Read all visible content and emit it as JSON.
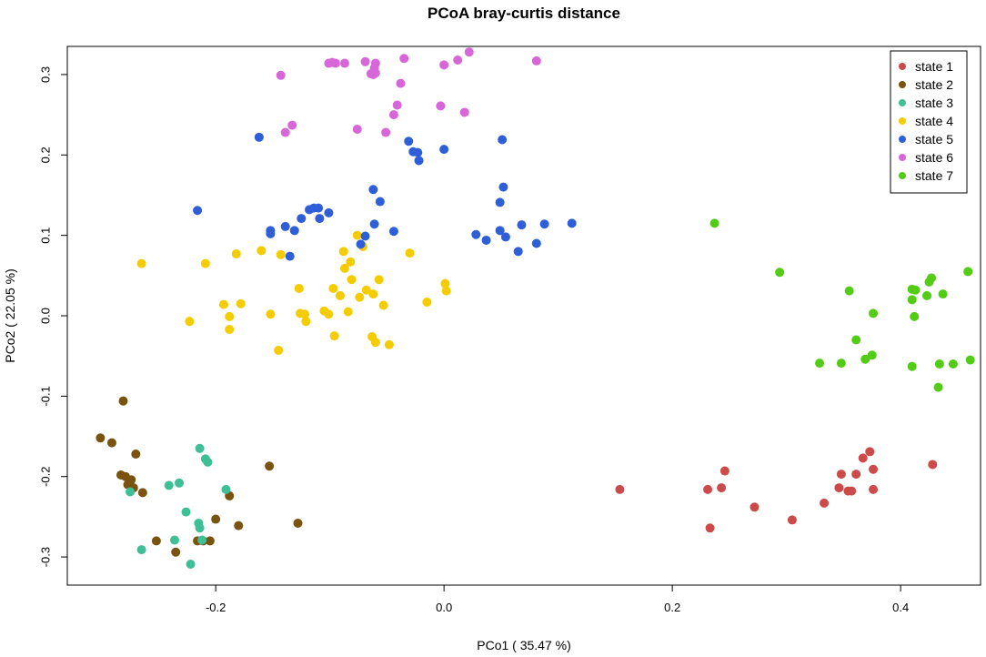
{
  "chart_data": {
    "type": "scatter",
    "title": "PCoA bray-curtis distance",
    "xlabel": "PCo1 ( 35.47  %)",
    "ylabel": "PCo2 ( 22.05  %)",
    "xlim": [
      -0.33,
      0.47
    ],
    "ylim": [
      -0.335,
      0.335
    ],
    "xticks": [
      -0.2,
      0.0,
      0.2,
      0.4
    ],
    "xtick_labels": [
      "-0.2",
      "0.0",
      "0.2",
      "0.4"
    ],
    "yticks": [
      -0.3,
      -0.2,
      -0.1,
      0.0,
      0.1,
      0.2,
      0.3
    ],
    "ytick_labels": [
      "-0.3",
      "-0.2",
      "-0.1",
      "0.0",
      "0.1",
      "0.2",
      "0.3"
    ],
    "grid": false,
    "legend_position": "top-right",
    "series": [
      {
        "name": "state 1",
        "color": "#cc4a4a",
        "points": [
          [
            0.154,
            -0.216
          ],
          [
            0.231,
            -0.216
          ],
          [
            0.233,
            -0.264
          ],
          [
            0.243,
            -0.214
          ],
          [
            0.246,
            -0.193
          ],
          [
            0.272,
            -0.238
          ],
          [
            0.305,
            -0.254
          ],
          [
            0.333,
            -0.233
          ],
          [
            0.346,
            -0.214
          ],
          [
            0.348,
            -0.197
          ],
          [
            0.354,
            -0.218
          ],
          [
            0.357,
            -0.218
          ],
          [
            0.361,
            -0.197
          ],
          [
            0.367,
            -0.177
          ],
          [
            0.373,
            -0.169
          ],
          [
            0.376,
            -0.216
          ],
          [
            0.376,
            -0.191
          ],
          [
            0.428,
            -0.185
          ]
        ]
      },
      {
        "name": "state 2",
        "color": "#7a5310",
        "points": [
          [
            -0.301,
            -0.152
          ],
          [
            -0.291,
            -0.158
          ],
          [
            -0.283,
            -0.198
          ],
          [
            -0.281,
            -0.106
          ],
          [
            -0.279,
            -0.2
          ],
          [
            -0.277,
            -0.21
          ],
          [
            -0.274,
            -0.204
          ],
          [
            -0.272,
            -0.214
          ],
          [
            -0.27,
            -0.172
          ],
          [
            -0.264,
            -0.22
          ],
          [
            -0.252,
            -0.28
          ],
          [
            -0.235,
            -0.294
          ],
          [
            -0.216,
            -0.28
          ],
          [
            -0.211,
            -0.28
          ],
          [
            -0.205,
            -0.28
          ],
          [
            -0.2,
            -0.253
          ],
          [
            -0.188,
            -0.224
          ],
          [
            -0.18,
            -0.261
          ],
          [
            -0.153,
            -0.187
          ],
          [
            -0.128,
            -0.258
          ]
        ]
      },
      {
        "name": "state 3",
        "color": "#3fbf96",
        "points": [
          [
            -0.275,
            -0.219
          ],
          [
            -0.265,
            -0.291
          ],
          [
            -0.241,
            -0.211
          ],
          [
            -0.236,
            -0.279
          ],
          [
            -0.232,
            -0.208
          ],
          [
            -0.226,
            -0.244
          ],
          [
            -0.222,
            -0.309
          ],
          [
            -0.215,
            -0.258
          ],
          [
            -0.214,
            -0.264
          ],
          [
            -0.214,
            -0.165
          ],
          [
            -0.212,
            -0.279
          ],
          [
            -0.209,
            -0.178
          ],
          [
            -0.207,
            -0.182
          ],
          [
            -0.191,
            -0.216
          ]
        ]
      },
      {
        "name": "state 4",
        "color": "#f5cc00",
        "points": [
          [
            -0.265,
            0.065
          ],
          [
            -0.223,
            -0.007
          ],
          [
            -0.209,
            0.065
          ],
          [
            -0.193,
            0.014
          ],
          [
            -0.188,
            -0.001
          ],
          [
            -0.188,
            -0.017
          ],
          [
            -0.182,
            0.077
          ],
          [
            -0.178,
            0.015
          ],
          [
            -0.16,
            0.081
          ],
          [
            -0.152,
            0.002
          ],
          [
            -0.145,
            -0.043
          ],
          [
            -0.143,
            0.076
          ],
          [
            -0.127,
            0.034
          ],
          [
            -0.126,
            0.003
          ],
          [
            -0.122,
            0.002
          ],
          [
            -0.121,
            -0.007
          ],
          [
            -0.105,
            0.006
          ],
          [
            -0.101,
            0.002
          ],
          [
            -0.097,
            0.034
          ],
          [
            -0.096,
            -0.025
          ],
          [
            -0.091,
            0.025
          ],
          [
            -0.088,
            0.08
          ],
          [
            -0.087,
            0.059
          ],
          [
            -0.084,
            0.005
          ],
          [
            -0.082,
            0.067
          ],
          [
            -0.081,
            0.045
          ],
          [
            -0.076,
            0.1
          ],
          [
            -0.074,
            0.023
          ],
          [
            -0.071,
            0.086
          ],
          [
            -0.068,
            0.032
          ],
          [
            -0.063,
            -0.026
          ],
          [
            -0.062,
            0.027
          ],
          [
            -0.06,
            -0.033
          ],
          [
            -0.057,
            0.045
          ],
          [
            -0.053,
            0.013
          ],
          [
            -0.048,
            -0.036
          ],
          [
            -0.03,
            0.078
          ],
          [
            -0.015,
            0.017
          ],
          [
            0.001,
            0.04
          ],
          [
            0.002,
            0.031
          ]
        ]
      },
      {
        "name": "state 5",
        "color": "#2e5fd9",
        "points": [
          [
            -0.216,
            0.131
          ],
          [
            -0.162,
            0.222
          ],
          [
            -0.152,
            0.106
          ],
          [
            -0.152,
            0.102
          ],
          [
            -0.139,
            0.111
          ],
          [
            -0.135,
            0.074
          ],
          [
            -0.131,
            0.106
          ],
          [
            -0.125,
            0.121
          ],
          [
            -0.118,
            0.132
          ],
          [
            -0.114,
            0.134
          ],
          [
            -0.11,
            0.134
          ],
          [
            -0.109,
            0.121
          ],
          [
            -0.101,
            0.128
          ],
          [
            -0.073,
            0.089
          ],
          [
            -0.069,
            0.099
          ],
          [
            -0.062,
            0.157
          ],
          [
            -0.061,
            0.114
          ],
          [
            -0.056,
            0.142
          ],
          [
            -0.044,
            0.105
          ],
          [
            -0.031,
            0.217
          ],
          [
            -0.027,
            0.204
          ],
          [
            -0.023,
            0.203
          ],
          [
            -0.022,
            0.193
          ],
          [
            0.0,
            0.207
          ],
          [
            0.028,
            0.101
          ],
          [
            0.037,
            0.094
          ],
          [
            0.049,
            0.106
          ],
          [
            0.049,
            0.141
          ],
          [
            0.051,
            0.219
          ],
          [
            0.052,
            0.16
          ],
          [
            0.054,
            0.098
          ],
          [
            0.065,
            0.08
          ],
          [
            0.068,
            0.113
          ],
          [
            0.081,
            0.09
          ],
          [
            0.088,
            0.114
          ],
          [
            0.112,
            0.115
          ]
        ]
      },
      {
        "name": "state 6",
        "color": "#d966d9",
        "points": [
          [
            -0.143,
            0.299
          ],
          [
            -0.139,
            0.228
          ],
          [
            -0.133,
            0.237
          ],
          [
            -0.101,
            0.314
          ],
          [
            -0.098,
            0.315
          ],
          [
            -0.095,
            0.314
          ],
          [
            -0.087,
            0.314
          ],
          [
            -0.076,
            0.232
          ],
          [
            -0.069,
            0.316
          ],
          [
            -0.064,
            0.301
          ],
          [
            -0.062,
            0.3
          ],
          [
            -0.061,
            0.308
          ],
          [
            -0.06,
            0.314
          ],
          [
            -0.06,
            0.302
          ],
          [
            -0.051,
            0.228
          ],
          [
            -0.044,
            0.25
          ],
          [
            -0.041,
            0.262
          ],
          [
            -0.038,
            0.289
          ],
          [
            -0.035,
            0.32
          ],
          [
            -0.003,
            0.261
          ],
          [
            0.0,
            0.312
          ],
          [
            0.012,
            0.318
          ],
          [
            0.018,
            0.253
          ],
          [
            0.022,
            0.328
          ],
          [
            0.081,
            0.317
          ]
        ]
      },
      {
        "name": "state 7",
        "color": "#52cc14",
        "points": [
          [
            0.237,
            0.115
          ],
          [
            0.294,
            0.054
          ],
          [
            0.329,
            -0.059
          ],
          [
            0.348,
            -0.059
          ],
          [
            0.355,
            0.031
          ],
          [
            0.361,
            -0.03
          ],
          [
            0.369,
            -0.054
          ],
          [
            0.375,
            -0.049
          ],
          [
            0.376,
            0.003
          ],
          [
            0.41,
            0.02
          ],
          [
            0.41,
            0.033
          ],
          [
            0.41,
            -0.063
          ],
          [
            0.412,
            -0.001
          ],
          [
            0.413,
            0.032
          ],
          [
            0.423,
            0.025
          ],
          [
            0.425,
            0.042
          ],
          [
            0.427,
            0.047
          ],
          [
            0.433,
            -0.089
          ],
          [
            0.434,
            -0.06
          ],
          [
            0.437,
            0.027
          ],
          [
            0.446,
            -0.06
          ],
          [
            0.459,
            0.055
          ],
          [
            0.461,
            -0.055
          ]
        ]
      }
    ]
  }
}
